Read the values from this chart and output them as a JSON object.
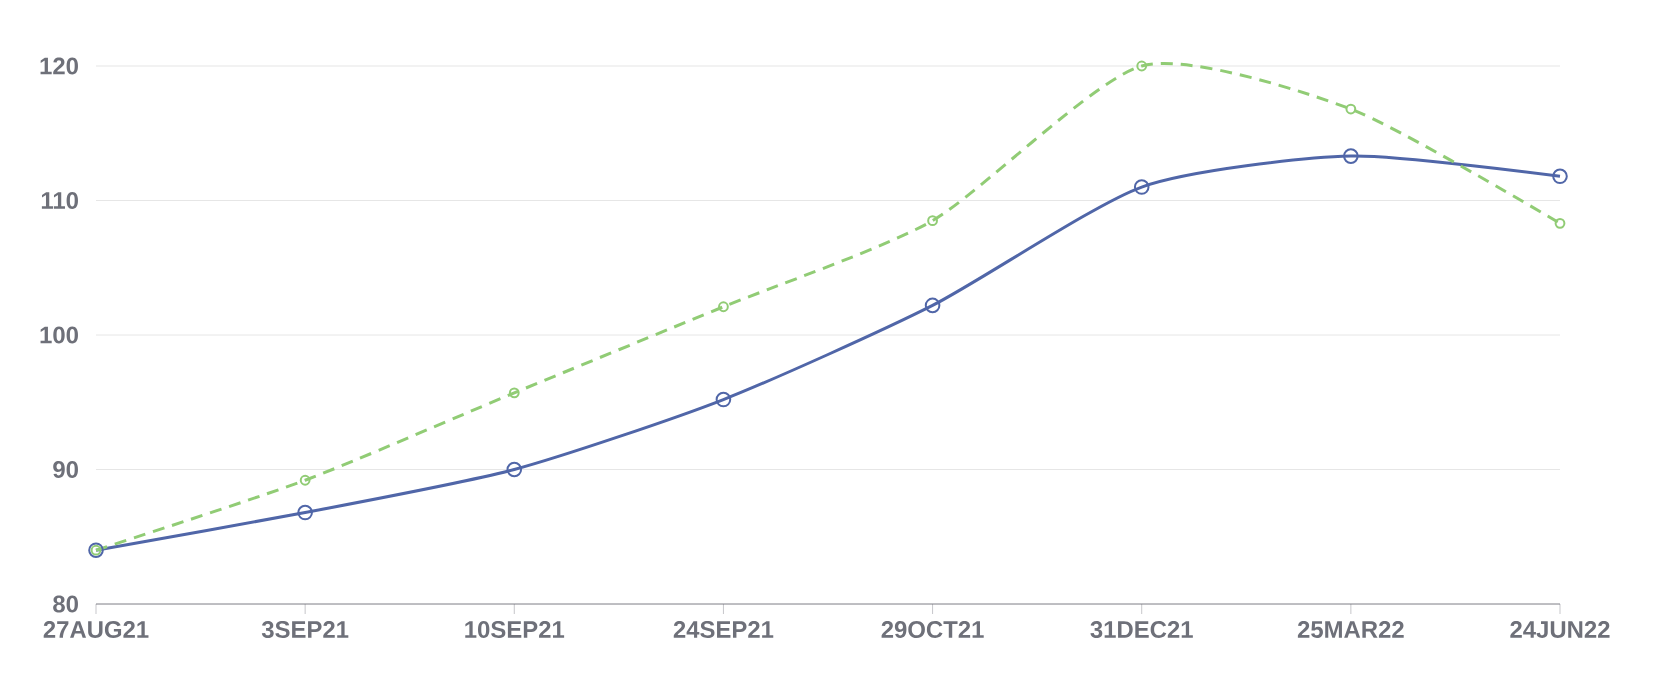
{
  "chart_data": {
    "type": "line",
    "categories": [
      "27AUG21",
      "3SEP21",
      "10SEP21",
      "24SEP21",
      "29OCT21",
      "31DEC21",
      "25MAR22",
      "24JUN22"
    ],
    "series": [
      {
        "color": "#5066a8",
        "line_style": "solid",
        "values": [
          84,
          86.8,
          90,
          95.2,
          102.2,
          111,
          113.3,
          111.8
        ]
      },
      {
        "color": "#91cc75",
        "line_style": "dashed",
        "values": [
          84,
          89.2,
          95.7,
          102.1,
          108.5,
          120,
          116.8,
          108.3
        ]
      }
    ],
    "ylim": [
      80,
      120
    ],
    "yticks": [
      80,
      90,
      100,
      110,
      120
    ],
    "grid": "y",
    "marker": "circle",
    "legend": false
  }
}
